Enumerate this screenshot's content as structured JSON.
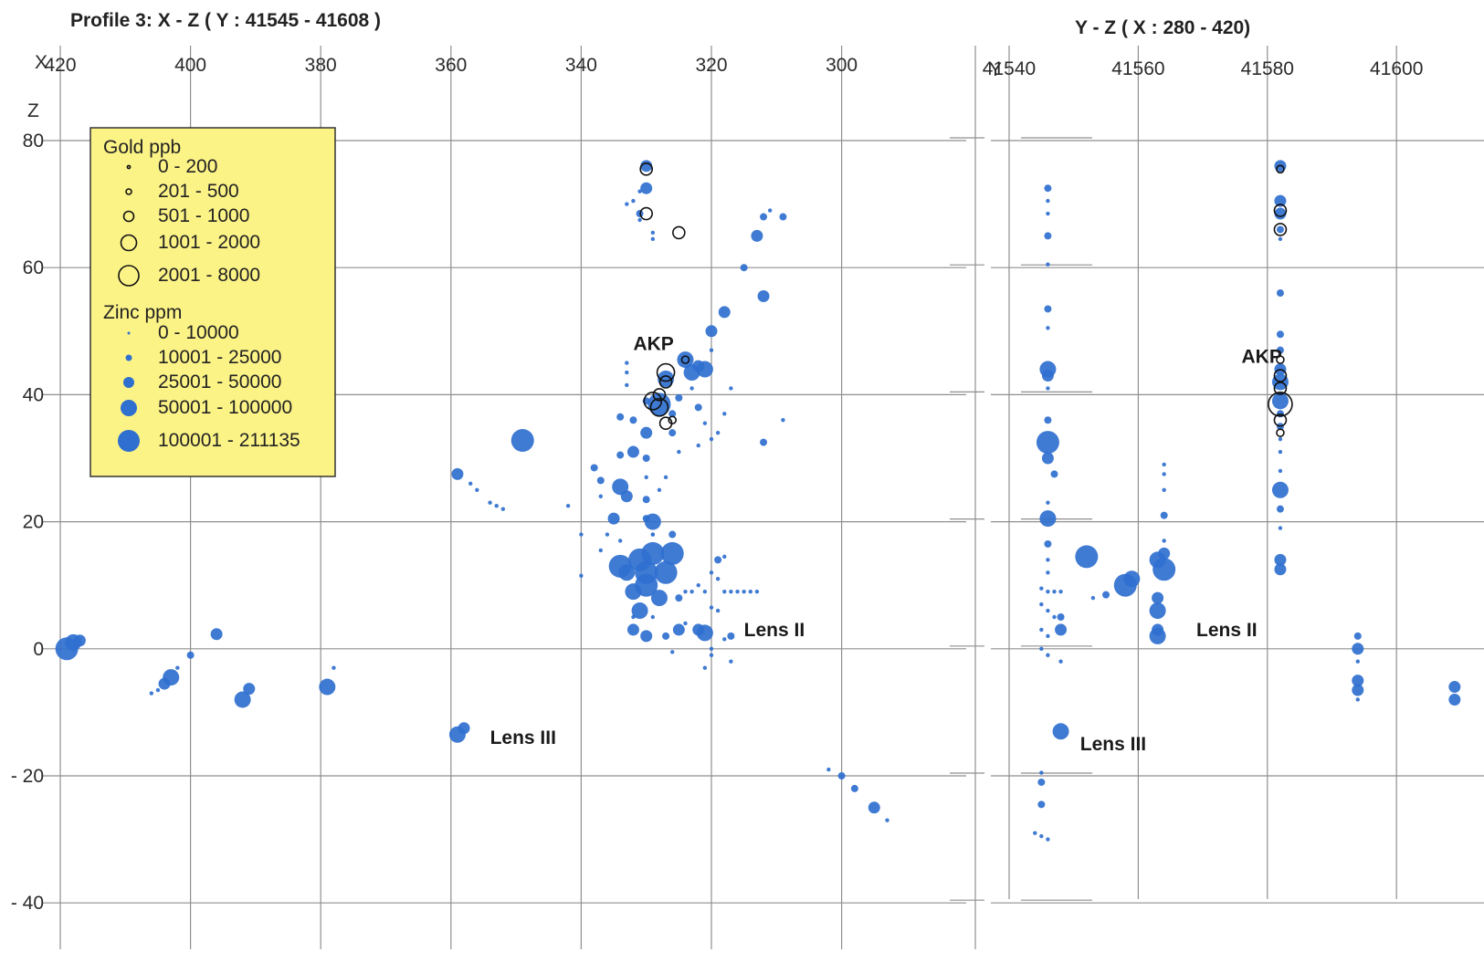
{
  "chart_data": [
    {
      "type": "scatter",
      "panel": "xz",
      "title": "Profile 3:   X - Z  ( Y : 41545 - 41608 )",
      "xlabel": "X",
      "ylabel": "Z",
      "x_ticks": [
        "420",
        "400",
        "380",
        "360",
        "340",
        "320",
        "300"
      ],
      "y_ticks": [
        "80",
        "60",
        "40",
        "20",
        "0",
        "- 20",
        "- 40"
      ],
      "xlim": [
        420,
        278
      ],
      "ylim": [
        -46,
        88
      ],
      "grid": true,
      "legend_position": "top-left",
      "legend": {
        "gold_title": "Gold ppb",
        "gold_classes": [
          "0 - 200",
          "201 - 500",
          "501 - 1000",
          "1001 - 2000",
          "2001 - 8000"
        ],
        "zinc_title": "Zinc ppm",
        "zinc_classes": [
          "0 - 10000",
          "10001 - 25000",
          "25001 - 50000",
          "50001 - 100000",
          "100001 - 211135"
        ]
      },
      "annotations": [
        {
          "text": "AKP",
          "x": 332,
          "y": 47
        },
        {
          "text": "Lens II",
          "x": 315,
          "y": 2
        },
        {
          "text": "Lens III",
          "x": 354,
          "y": -15
        }
      ],
      "zinc_points": [
        [
          419,
          0,
          5
        ],
        [
          418,
          1,
          4
        ],
        [
          417,
          1.3,
          3
        ],
        [
          406,
          -7,
          1
        ],
        [
          405,
          -6.5,
          1
        ],
        [
          404,
          -5.5,
          3
        ],
        [
          403,
          -4.5,
          4
        ],
        [
          402,
          -3,
          1
        ],
        [
          400,
          -1,
          2
        ],
        [
          396,
          2.3,
          3
        ],
        [
          392,
          -8,
          4
        ],
        [
          391,
          -6.3,
          3
        ],
        [
          379,
          -6,
          4
        ],
        [
          378,
          -3,
          1
        ],
        [
          359,
          -13.5,
          4
        ],
        [
          358,
          -12.5,
          3
        ],
        [
          359,
          27.5,
          3
        ],
        [
          357,
          26,
          1
        ],
        [
          356,
          25,
          1
        ],
        [
          354,
          23,
          1
        ],
        [
          353,
          22.5,
          1
        ],
        [
          352,
          22,
          1
        ],
        [
          349,
          32.8,
          5
        ],
        [
          342,
          22.5,
          1
        ],
        [
          340,
          18,
          1
        ],
        [
          340,
          11.5,
          1
        ],
        [
          338,
          28.5,
          2
        ],
        [
          337,
          26.5,
          2
        ],
        [
          337,
          15.5,
          1
        ],
        [
          335,
          20.5,
          3
        ],
        [
          334,
          36.5,
          2
        ],
        [
          334,
          30.5,
          2
        ],
        [
          334,
          25.5,
          4
        ],
        [
          333,
          24,
          3
        ],
        [
          334,
          13,
          5
        ],
        [
          333,
          12,
          4
        ],
        [
          333,
          45,
          1
        ],
        [
          333,
          43.5,
          1
        ],
        [
          333,
          41.5,
          1
        ],
        [
          332,
          36,
          2
        ],
        [
          332,
          31,
          3
        ],
        [
          332,
          9,
          4
        ],
        [
          331,
          6,
          4
        ],
        [
          332,
          3,
          3
        ],
        [
          331,
          14,
          5
        ],
        [
          330,
          12,
          5
        ],
        [
          330,
          10,
          5
        ],
        [
          330,
          2,
          3
        ],
        [
          330,
          39,
          2
        ],
        [
          330,
          34,
          3
        ],
        [
          330,
          30,
          2
        ],
        [
          330,
          27,
          1
        ],
        [
          330,
          23.5,
          2
        ],
        [
          330,
          20.5,
          2
        ],
        [
          329,
          18,
          1
        ],
        [
          329,
          15,
          5
        ],
        [
          330,
          72.5,
          3
        ],
        [
          331,
          72,
          1
        ],
        [
          332,
          70.5,
          1
        ],
        [
          333,
          70,
          1
        ],
        [
          331,
          68.5,
          2
        ],
        [
          331,
          67.5,
          1
        ],
        [
          330,
          76,
          3
        ],
        [
          329,
          65.5,
          1
        ],
        [
          329,
          64.5,
          1
        ],
        [
          329,
          18,
          1
        ],
        [
          329,
          20,
          4
        ],
        [
          328,
          8,
          4
        ],
        [
          327,
          12,
          5
        ],
        [
          327,
          2,
          2
        ],
        [
          326,
          15,
          5
        ],
        [
          325,
          8,
          2
        ],
        [
          325,
          3,
          3
        ],
        [
          326,
          -0.5,
          1
        ],
        [
          328,
          38.5,
          5
        ],
        [
          327,
          42.5,
          4
        ],
        [
          326,
          37,
          2
        ],
        [
          325,
          39.5,
          2
        ],
        [
          324,
          45.5,
          4
        ],
        [
          323,
          43.5,
          4
        ],
        [
          322,
          44.5,
          3
        ],
        [
          323,
          41,
          1
        ],
        [
          322,
          38,
          2
        ],
        [
          321,
          35.5,
          1
        ],
        [
          322,
          32,
          1
        ],
        [
          321,
          44,
          4
        ],
        [
          320,
          47,
          1
        ],
        [
          320,
          50,
          3
        ],
        [
          320,
          12,
          1
        ],
        [
          319,
          14,
          2
        ],
        [
          318,
          14.5,
          1
        ],
        [
          319,
          11,
          1
        ],
        [
          317,
          2,
          2
        ],
        [
          318,
          1.5,
          1
        ],
        [
          321,
          2.5,
          4
        ],
        [
          322,
          3,
          3
        ],
        [
          320,
          0,
          1
        ],
        [
          321,
          -3,
          1
        ],
        [
          320,
          -1,
          1
        ],
        [
          317,
          -2,
          1
        ],
        [
          318,
          9,
          1
        ],
        [
          317,
          9,
          1
        ],
        [
          316,
          9,
          1
        ],
        [
          315,
          9,
          1
        ],
        [
          314,
          9,
          1
        ],
        [
          313,
          9,
          1
        ],
        [
          322,
          10,
          1
        ],
        [
          321,
          9,
          1
        ],
        [
          320,
          6.5,
          1
        ],
        [
          319,
          6,
          1
        ],
        [
          323,
          9,
          1
        ],
        [
          324,
          9,
          1
        ],
        [
          318,
          53,
          3
        ],
        [
          315,
          60,
          2
        ],
        [
          313,
          65,
          3
        ],
        [
          312,
          68,
          2
        ],
        [
          311,
          69,
          1
        ],
        [
          309,
          68,
          2
        ],
        [
          312,
          55.5,
          3
        ],
        [
          312,
          32.5,
          2
        ],
        [
          317,
          41,
          1
        ],
        [
          318,
          37,
          1
        ],
        [
          319,
          34,
          1
        ],
        [
          320,
          33,
          1
        ],
        [
          309,
          36,
          1
        ],
        [
          300,
          -20,
          2
        ],
        [
          298,
          -22,
          2
        ],
        [
          295,
          -25,
          3
        ],
        [
          293,
          -27,
          1
        ],
        [
          302,
          -19,
          1
        ],
        [
          326,
          34,
          2
        ],
        [
          325,
          31,
          1
        ],
        [
          327,
          27,
          1
        ],
        [
          328,
          25,
          1
        ],
        [
          332,
          5,
          1
        ],
        [
          329,
          5,
          1
        ],
        [
          324,
          4,
          1
        ],
        [
          334,
          17,
          1
        ],
        [
          336,
          18,
          1
        ],
        [
          337,
          24,
          1
        ],
        [
          326,
          18,
          2
        ]
      ],
      "gold_points": [
        [
          330,
          75.5,
          3
        ],
        [
          330,
          68.5,
          3
        ],
        [
          325,
          65.5,
          3
        ],
        [
          324,
          45.5,
          2
        ],
        [
          327,
          43.5,
          4
        ],
        [
          327,
          42,
          3
        ],
        [
          328,
          40,
          3
        ],
        [
          328,
          38,
          4
        ],
        [
          329,
          39,
          4
        ],
        [
          327,
          35.5,
          3
        ],
        [
          326,
          36,
          2
        ]
      ]
    },
    {
      "type": "scatter",
      "panel": "yz",
      "title": "Y - Z  ( X : 280 - 420)",
      "xlabel": "Y",
      "ylabel": "Z",
      "x_ticks": [
        "41540",
        "41560",
        "41580",
        "41600"
      ],
      "y_ticks": [
        "80",
        "60",
        "40",
        "20",
        "0",
        "- 20",
        "- 40"
      ],
      "xlim": [
        41540,
        41610
      ],
      "ylim": [
        -46,
        88
      ],
      "grid": true,
      "annotations": [
        {
          "text": "AKP",
          "x": 41576,
          "y": 45
        },
        {
          "text": "Lens II",
          "x": 41569,
          "y": 2
        },
        {
          "text": "Lens III",
          "x": 41551,
          "y": -16
        }
      ],
      "zinc_points": [
        [
          41546,
          72.5,
          2
        ],
        [
          41546,
          70.5,
          1
        ],
        [
          41546,
          68.5,
          1
        ],
        [
          41546,
          65,
          2
        ],
        [
          41546,
          60.5,
          1
        ],
        [
          41546,
          53.5,
          2
        ],
        [
          41546,
          50.5,
          1
        ],
        [
          41546,
          44,
          4
        ],
        [
          41546,
          43,
          3
        ],
        [
          41546,
          41,
          1
        ],
        [
          41546,
          36,
          2
        ],
        [
          41546,
          32.5,
          5
        ],
        [
          41546,
          30,
          3
        ],
        [
          41547,
          27.5,
          2
        ],
        [
          41546,
          23,
          1
        ],
        [
          41546,
          20.5,
          4
        ],
        [
          41546,
          16.5,
          2
        ],
        [
          41545,
          9.5,
          1
        ],
        [
          41546,
          9,
          1
        ],
        [
          41547,
          9,
          1
        ],
        [
          41548,
          9,
          1
        ],
        [
          41545,
          7,
          1
        ],
        [
          41546,
          6,
          1
        ],
        [
          41547,
          5,
          1
        ],
        [
          41548,
          5,
          2
        ],
        [
          41545,
          3,
          1
        ],
        [
          41546,
          2,
          1
        ],
        [
          41548,
          3,
          3
        ],
        [
          41545,
          0,
          1
        ],
        [
          41546,
          -1,
          1
        ],
        [
          41548,
          -2,
          1
        ],
        [
          41548,
          -13,
          4
        ],
        [
          41545,
          -19.5,
          1
        ],
        [
          41545,
          -21,
          2
        ],
        [
          41545,
          -24.5,
          2
        ],
        [
          41544,
          -29,
          1
        ],
        [
          41545,
          -29.5,
          1
        ],
        [
          41546,
          -30,
          1
        ],
        [
          41552,
          14.5,
          5
        ],
        [
          41553,
          8,
          1
        ],
        [
          41555,
          8.5,
          2
        ],
        [
          41558,
          10,
          5
        ],
        [
          41559,
          11,
          4
        ],
        [
          41563,
          14,
          4
        ],
        [
          41564,
          15,
          3
        ],
        [
          41564,
          12.5,
          5
        ],
        [
          41563,
          8,
          3
        ],
        [
          41563,
          6,
          4
        ],
        [
          41563,
          3,
          3
        ],
        [
          41563,
          2,
          4
        ],
        [
          41564,
          17,
          1
        ],
        [
          41564,
          21,
          2
        ],
        [
          41564,
          25,
          1
        ],
        [
          41564,
          27.5,
          1
        ],
        [
          41564,
          29,
          1
        ],
        [
          41582,
          76,
          3
        ],
        [
          41582,
          70.5,
          3
        ],
        [
          41582,
          68.5,
          3
        ],
        [
          41582,
          66,
          2
        ],
        [
          41582,
          64.5,
          1
        ],
        [
          41582,
          56,
          2
        ],
        [
          41582,
          49.5,
          2
        ],
        [
          41582,
          47,
          2
        ],
        [
          41582,
          44,
          3
        ],
        [
          41582,
          42,
          4
        ],
        [
          41582,
          39,
          4
        ],
        [
          41582,
          37,
          2
        ],
        [
          41582,
          35,
          2
        ],
        [
          41582,
          33,
          1
        ],
        [
          41582,
          31,
          1
        ],
        [
          41582,
          28,
          1
        ],
        [
          41582,
          25,
          4
        ],
        [
          41582,
          22,
          2
        ],
        [
          41582,
          19,
          1
        ],
        [
          41582,
          14,
          3
        ],
        [
          41582,
          12.5,
          3
        ],
        [
          41594,
          2,
          2
        ],
        [
          41594,
          0,
          3
        ],
        [
          41594,
          -2,
          1
        ],
        [
          41594,
          -5,
          3
        ],
        [
          41594,
          -6.5,
          3
        ],
        [
          41594,
          -8,
          1
        ],
        [
          41609,
          -6,
          3
        ],
        [
          41609,
          -8,
          3
        ],
        [
          41546,
          12,
          1
        ],
        [
          41546,
          14,
          1
        ]
      ],
      "gold_points": [
        [
          41582,
          75.5,
          2
        ],
        [
          41582,
          69,
          3
        ],
        [
          41582,
          66,
          3
        ],
        [
          41582,
          45.5,
          2
        ],
        [
          41582,
          43,
          3
        ],
        [
          41582,
          41,
          3
        ],
        [
          41582,
          38.5,
          5
        ],
        [
          41582,
          36,
          3
        ],
        [
          41582,
          34,
          2
        ]
      ]
    }
  ],
  "colors": {
    "zinc": "#2f6fcf",
    "gold_ring": "#111111",
    "legend_bg": "#fcf387",
    "grid": "#8f8f8f"
  }
}
